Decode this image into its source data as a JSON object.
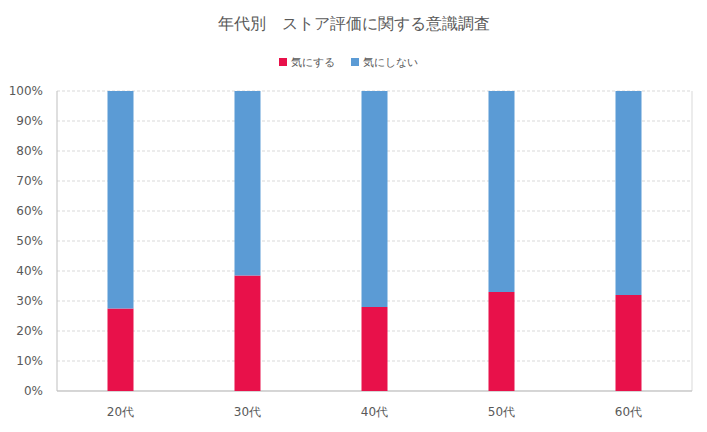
{
  "chart_data": {
    "type": "bar",
    "title": "年代別　ストア評価に関する意識調査",
    "categories": [
      "20代",
      "30代",
      "40代",
      "50代",
      "60代"
    ],
    "series": [
      {
        "name": "気にする",
        "color": "#e8114a",
        "values": [
          27.5,
          38.5,
          28,
          33,
          32
        ]
      },
      {
        "name": "気にしない",
        "color": "#5b9bd5",
        "values": [
          72.5,
          61.5,
          72,
          67,
          68
        ]
      }
    ],
    "stacked": true,
    "ylim": [
      0,
      100
    ],
    "yticks": [
      {
        "value": 0,
        "label": "0%"
      },
      {
        "value": 10,
        "label": "10%"
      },
      {
        "value": 20,
        "label": "20%"
      },
      {
        "value": 30,
        "label": "30%"
      },
      {
        "value": 40,
        "label": "40%"
      },
      {
        "value": 50,
        "label": "50%"
      },
      {
        "value": 60,
        "label": "60%"
      },
      {
        "value": 70,
        "label": "70%"
      },
      {
        "value": 80,
        "label": "80%"
      },
      {
        "value": 90,
        "label": "90%"
      },
      {
        "value": 100,
        "label": "100%"
      }
    ],
    "grid": true,
    "legend": "top"
  }
}
